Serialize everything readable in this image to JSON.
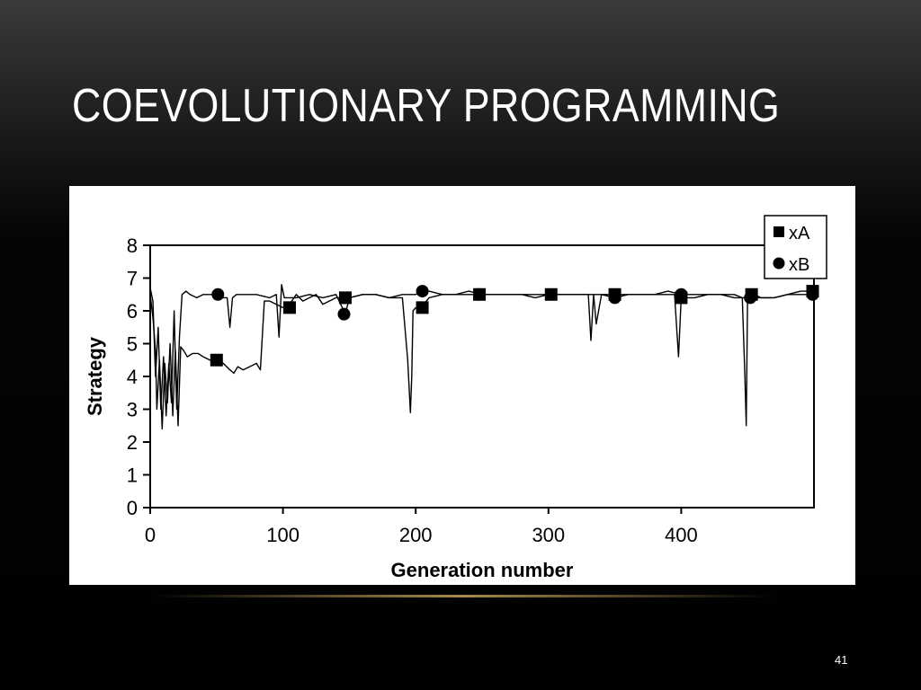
{
  "slide": {
    "title": "COEVOLUTIONARY PROGRAMMING",
    "page_number": "41"
  },
  "colors": {
    "background": "#000000",
    "title": "#ffffff",
    "chart_background": "#ffffff",
    "chart_ink": "#000000",
    "divider": "#a88a4a"
  },
  "chart_data": {
    "type": "line",
    "xlabel": "Generation number",
    "ylabel": "Strategy",
    "xlim": [
      0,
      500
    ],
    "ylim": [
      0,
      8
    ],
    "xticks": [
      0,
      100,
      200,
      300,
      400
    ],
    "yticks": [
      0,
      1,
      2,
      3,
      4,
      5,
      6,
      7,
      8
    ],
    "grid": false,
    "legend": {
      "position": "top-right",
      "entries": [
        "xA",
        "xB"
      ]
    },
    "series": [
      {
        "name": "xA",
        "marker": "square",
        "x": [
          0,
          2,
          4,
          5,
          7,
          9,
          11,
          13,
          15,
          17,
          19,
          21,
          23,
          25,
          28,
          32,
          36,
          40,
          45,
          50,
          55,
          60,
          63,
          66,
          70,
          75,
          80,
          83,
          86,
          90,
          95,
          100,
          105,
          110,
          115,
          120,
          125,
          130,
          140,
          147,
          150,
          160,
          170,
          180,
          190,
          194,
          196,
          197,
          198,
          200,
          204,
          210,
          220,
          230,
          240,
          250,
          260,
          270,
          280,
          290,
          300,
          310,
          320,
          330,
          340,
          350,
          360,
          370,
          380,
          390,
          395,
          397,
          398,
          400,
          410,
          420,
          430,
          440,
          446,
          448,
          449,
          450,
          455,
          460,
          470,
          480,
          490,
          497,
          500
        ],
        "y": [
          6.5,
          5.8,
          4.8,
          3.0,
          4.5,
          2.4,
          4.4,
          3.2,
          5.0,
          2.8,
          4.8,
          2.5,
          4.9,
          4.8,
          4.6,
          4.7,
          4.7,
          4.6,
          4.5,
          4.5,
          4.4,
          4.2,
          4.1,
          4.3,
          4.2,
          4.3,
          4.4,
          4.2,
          6.3,
          6.3,
          6.2,
          6.1,
          6.2,
          6.5,
          6.3,
          6.4,
          6.5,
          6.2,
          6.4,
          6.4,
          6.4,
          6.5,
          6.5,
          6.4,
          6.4,
          4.5,
          2.9,
          4.0,
          6.0,
          6.1,
          6.1,
          6.4,
          6.5,
          6.5,
          6.5,
          6.5,
          6.5,
          6.5,
          6.5,
          6.4,
          6.5,
          6.5,
          6.5,
          6.5,
          6.5,
          6.5,
          6.5,
          6.5,
          6.5,
          6.5,
          6.5,
          5.2,
          4.6,
          6.4,
          6.4,
          6.5,
          6.5,
          6.5,
          6.4,
          4.0,
          2.5,
          6.5,
          6.5,
          6.4,
          6.4,
          6.5,
          6.6,
          6.6,
          6.6
        ],
        "marker_x": [
          50,
          105,
          147,
          205,
          248,
          302,
          350,
          400,
          453,
          499
        ],
        "marker_y": [
          4.5,
          6.1,
          6.4,
          6.1,
          6.5,
          6.5,
          6.5,
          6.4,
          6.5,
          6.6
        ]
      },
      {
        "name": "xB",
        "marker": "circle",
        "x": [
          0,
          2,
          4,
          6,
          8,
          10,
          12,
          14,
          16,
          18,
          20,
          22,
          24,
          27,
          30,
          35,
          40,
          50,
          55,
          58,
          60,
          62,
          65,
          70,
          80,
          90,
          95,
          97,
          99,
          101,
          105,
          110,
          120,
          130,
          140,
          147,
          150,
          160,
          170,
          180,
          190,
          200,
          205,
          210,
          220,
          230,
          240,
          250,
          260,
          270,
          280,
          290,
          300,
          310,
          320,
          330,
          332,
          334,
          336,
          340,
          350,
          360,
          370,
          380,
          390,
          400,
          410,
          420,
          430,
          440,
          450,
          460,
          470,
          480,
          490,
          500
        ],
        "y": [
          6.7,
          6.3,
          4.0,
          5.5,
          3.0,
          4.6,
          2.8,
          4.4,
          3.2,
          6.0,
          3.0,
          5.2,
          6.5,
          6.6,
          6.5,
          6.4,
          6.5,
          6.5,
          6.4,
          6.4,
          5.5,
          6.4,
          6.5,
          6.5,
          6.5,
          6.4,
          6.5,
          5.2,
          6.8,
          6.4,
          6.4,
          6.4,
          6.5,
          6.4,
          6.5,
          5.9,
          6.4,
          6.5,
          6.5,
          6.4,
          6.5,
          6.5,
          6.6,
          6.6,
          6.5,
          6.5,
          6.6,
          6.5,
          6.5,
          6.5,
          6.5,
          6.5,
          6.5,
          6.5,
          6.5,
          6.5,
          5.1,
          6.5,
          5.6,
          6.5,
          6.4,
          6.5,
          6.5,
          6.5,
          6.6,
          6.5,
          6.5,
          6.5,
          6.5,
          6.4,
          6.4,
          6.4,
          6.4,
          6.5,
          6.5,
          6.5
        ],
        "marker_x": [
          51,
          146,
          205,
          248,
          350,
          400,
          452,
          499
        ],
        "marker_y": [
          6.5,
          5.9,
          6.6,
          6.5,
          6.4,
          6.5,
          6.4,
          6.5
        ]
      }
    ]
  }
}
